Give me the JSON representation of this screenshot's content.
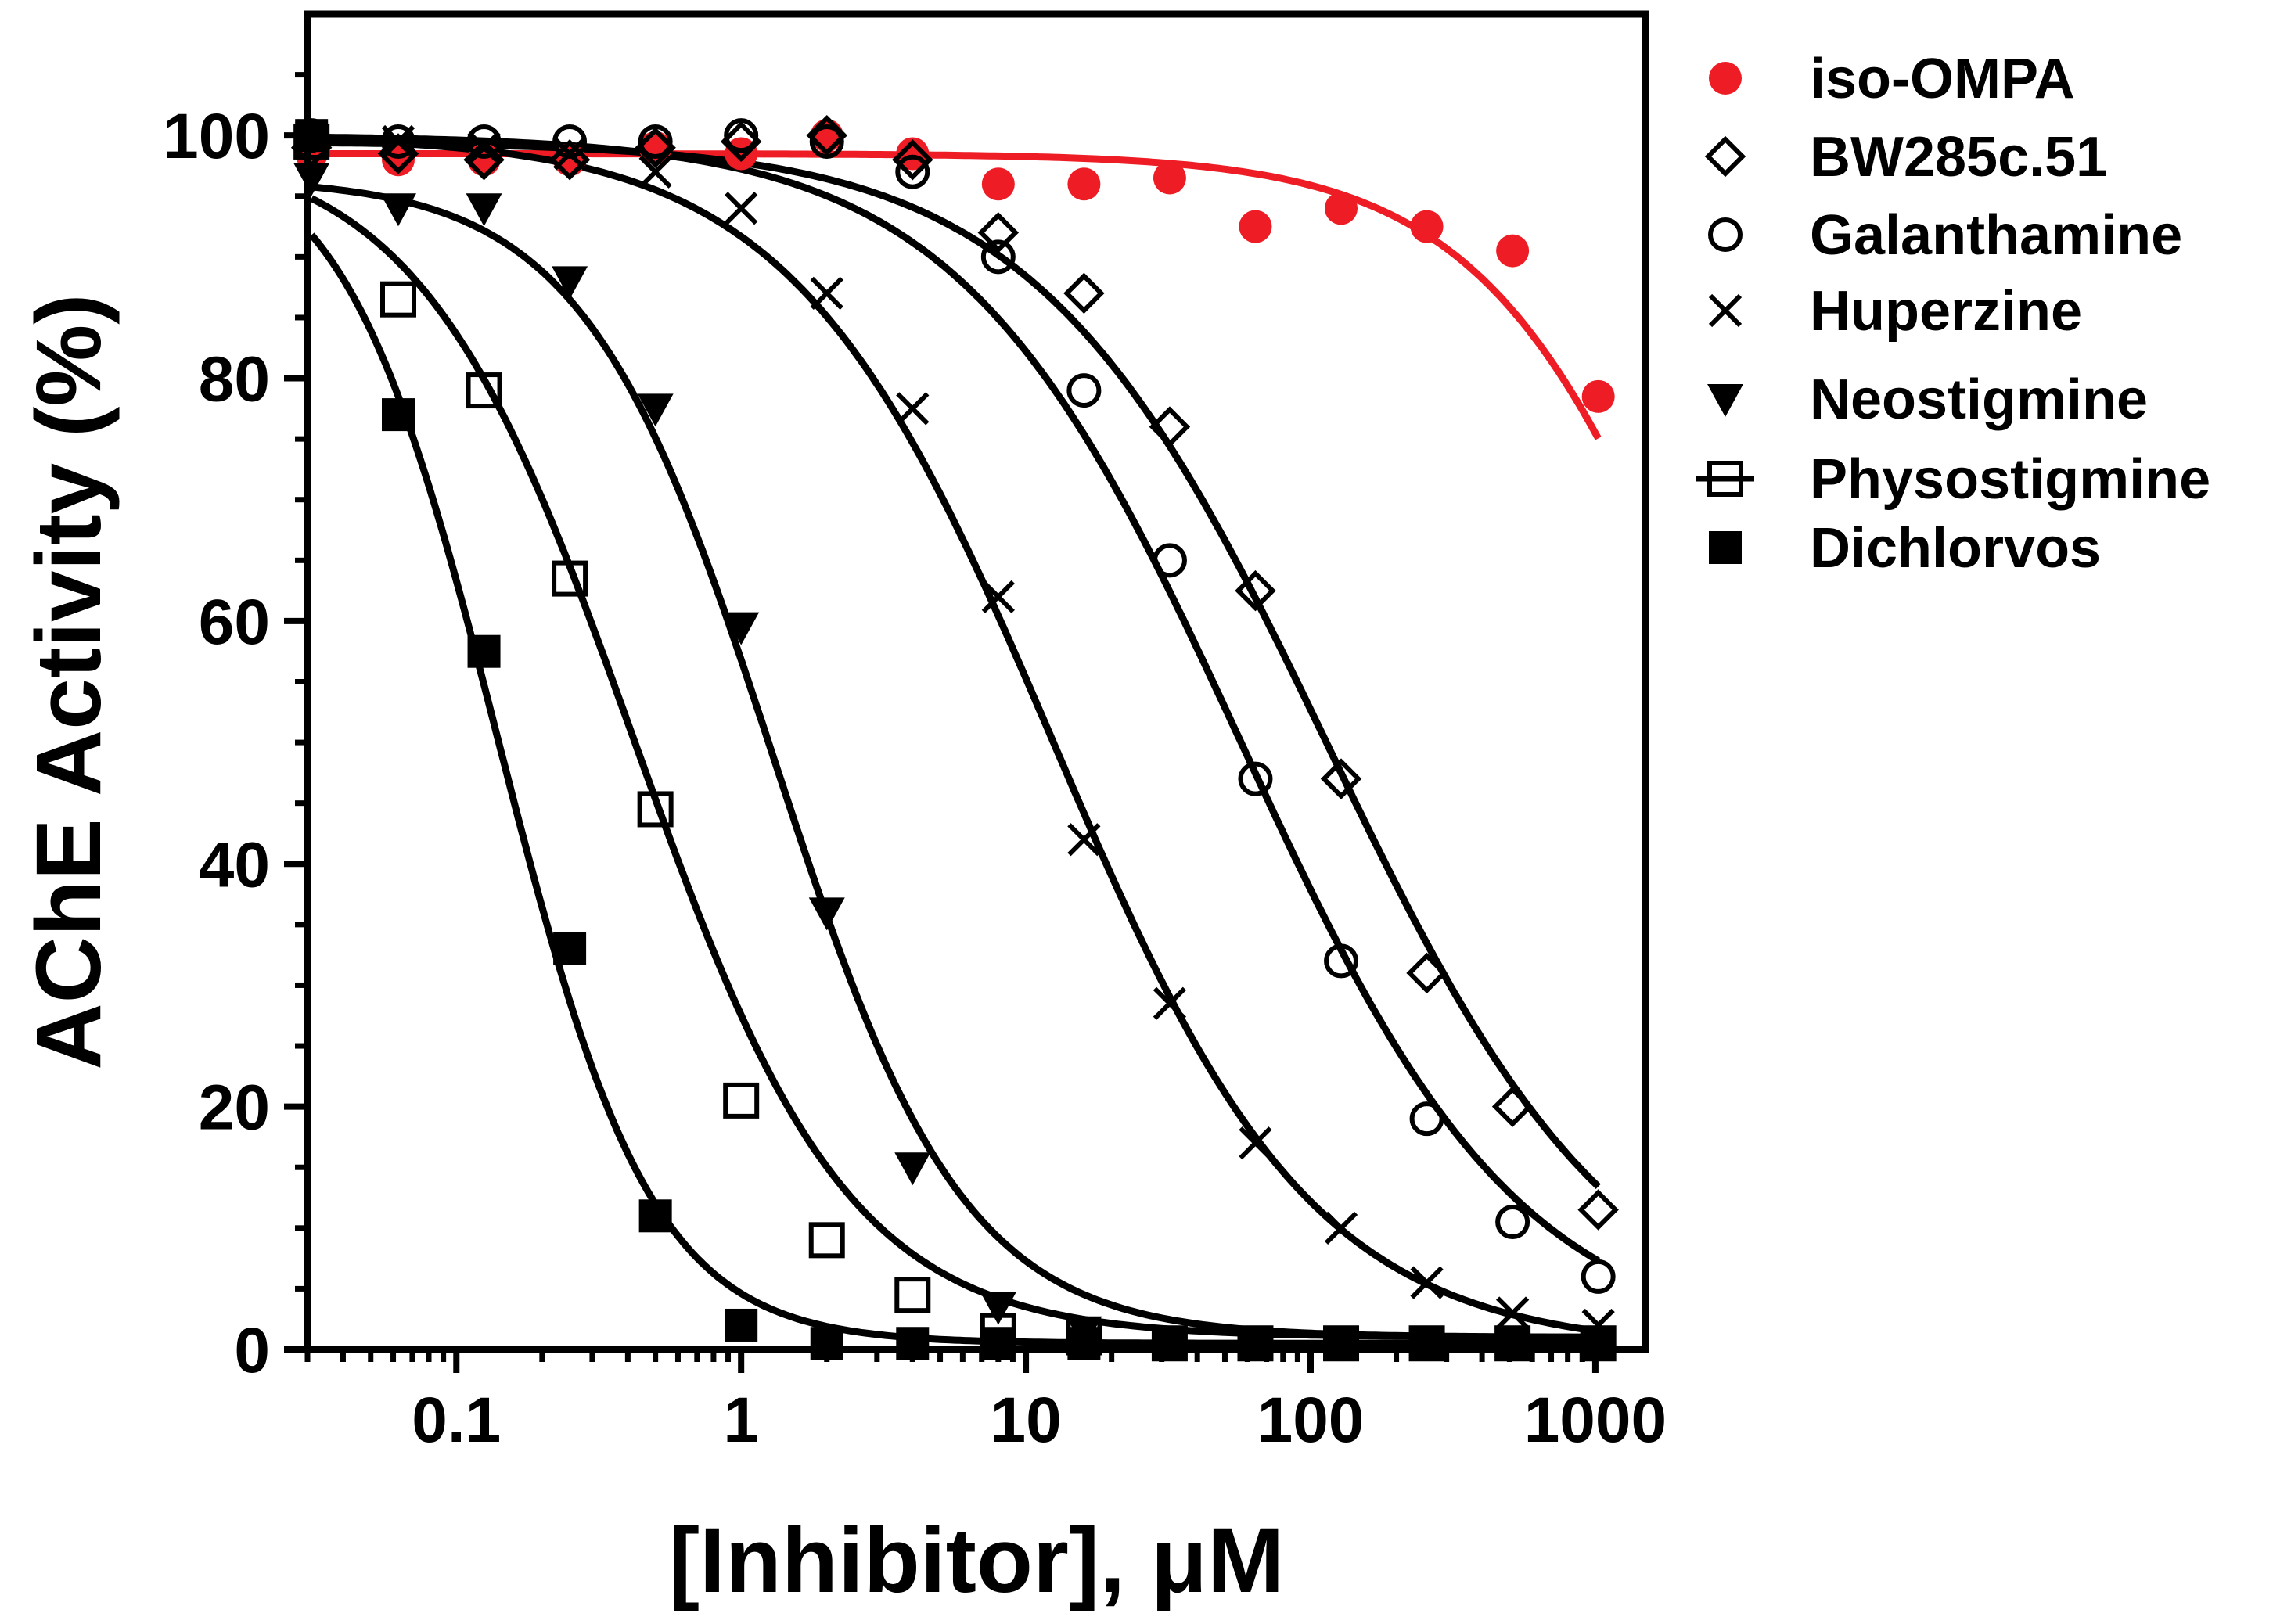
{
  "chart_data": {
    "type": "scatter",
    "title": "",
    "xlabel": "[Inhibitor], μM",
    "ylabel": "AChE Activity (%)",
    "xscale": "log",
    "xlim": [
      0.03,
      1500
    ],
    "ylim": [
      0,
      110
    ],
    "xticks": [
      0.1,
      1,
      10,
      100,
      1000
    ],
    "xtick_labels": [
      "0.1",
      "1",
      "10",
      "100",
      "1000"
    ],
    "yticks": [
      0,
      20,
      40,
      60,
      80,
      100
    ],
    "ytick_labels": [
      "0",
      "20",
      "40",
      "60",
      "80",
      "100"
    ],
    "legend_position": "right-outside",
    "series": [
      {
        "name": "iso-OMPA",
        "marker": "circle-filled",
        "color": "#ee1c24",
        "x": [
          0.031,
          0.0625,
          0.125,
          0.25,
          0.5,
          1,
          2,
          4,
          8,
          16,
          32,
          64,
          128,
          256,
          512,
          1024
        ],
        "y": [
          98.5,
          98,
          98,
          98,
          99,
          98.5,
          100,
          98.5,
          96,
          96,
          96.5,
          92.5,
          94,
          92.5,
          90.5,
          78.5
        ],
        "fit": {
          "top": 98.5,
          "bottom": 0,
          "ic50": 3100,
          "hill": 1.05
        }
      },
      {
        "name": "BW285c.51",
        "marker": "diamond-open",
        "color": "#000000",
        "x": [
          0.031,
          0.0625,
          0.125,
          0.25,
          0.5,
          1,
          2,
          4,
          8,
          16,
          32,
          64,
          128,
          256,
          512,
          1024
        ],
        "y": [
          99,
          98.5,
          98,
          98,
          99,
          99.5,
          100,
          98,
          92,
          87,
          76,
          62.5,
          47,
          31,
          20,
          11.5
        ],
        "fit": {
          "top": 99.5,
          "bottom": 0,
          "ic50": 115,
          "hill": 0.85
        }
      },
      {
        "name": "Galanthamine",
        "marker": "circle-open",
        "color": "#000000",
        "x": [
          0.031,
          0.0625,
          0.125,
          0.25,
          0.5,
          1,
          2,
          4,
          8,
          16,
          32,
          64,
          128,
          256,
          512,
          1024
        ],
        "y": [
          100,
          99.5,
          99.5,
          99.5,
          99.5,
          100,
          99.5,
          97,
          90,
          79,
          65,
          47,
          32,
          19,
          10.5,
          6
        ],
        "fit": {
          "top": 100,
          "bottom": 0,
          "ic50": 57,
          "hill": 0.88
        }
      },
      {
        "name": "Huperzine",
        "marker": "x",
        "color": "#000000",
        "x": [
          0.031,
          0.0625,
          0.125,
          0.25,
          0.5,
          1,
          2,
          4,
          8,
          16,
          32,
          64,
          128,
          256,
          512,
          1024
        ],
        "y": [
          100,
          99.5,
          99,
          98.5,
          97,
          94,
          87,
          77.5,
          62,
          42,
          28.5,
          17,
          10,
          5.5,
          3,
          2
        ],
        "fit": {
          "top": 100,
          "bottom": 0,
          "ic50": 12.5,
          "hill": 0.95
        }
      },
      {
        "name": "Neostigmine",
        "marker": "triangle-down-filled",
        "color": "#000000",
        "x": [
          0.031,
          0.0625,
          0.125,
          0.25,
          0.5,
          1,
          2,
          4,
          8,
          16,
          32,
          64,
          128,
          256,
          512,
          1024
        ],
        "y": [
          96.5,
          94,
          94,
          88,
          77.5,
          59.5,
          36,
          15,
          3.5,
          1.5,
          0.5,
          0.5,
          0.5,
          0.5,
          0.5,
          0.5
        ],
        "fit": {
          "top": 96.5,
          "bottom": 1,
          "ic50": 1.3,
          "hill": 1.3
        }
      },
      {
        "name": "Physostigmine",
        "marker": "square-open",
        "color": "#000000",
        "x": [
          0.031,
          0.0625,
          0.125,
          0.25,
          0.5,
          1,
          2,
          4,
          8,
          16,
          32,
          64,
          128,
          256,
          512,
          1024
        ],
        "y": [
          99.5,
          86.5,
          79,
          63.5,
          44.5,
          20.5,
          9,
          4.5,
          1.5,
          1,
          0.5,
          0.5,
          0.5,
          0.5,
          0.5,
          0.5
        ],
        "fit": {
          "top": 99.5,
          "bottom": 1,
          "ic50": 0.42,
          "hill": 1.15
        }
      },
      {
        "name": "Dichlorvos",
        "marker": "square-filled",
        "color": "#000000",
        "x": [
          0.031,
          0.0625,
          0.125,
          0.25,
          0.5,
          1,
          2,
          4,
          8,
          16,
          32,
          64,
          128,
          256,
          512,
          1024
        ],
        "y": [
          100,
          77,
          57.5,
          33,
          11,
          2,
          0.5,
          0.5,
          0.5,
          0.5,
          0.5,
          0.5,
          0.5,
          0.5,
          0.5,
          0.5
        ],
        "fit": {
          "top": 100,
          "bottom": 0.5,
          "ic50": 0.14,
          "hill": 1.6
        }
      }
    ]
  }
}
